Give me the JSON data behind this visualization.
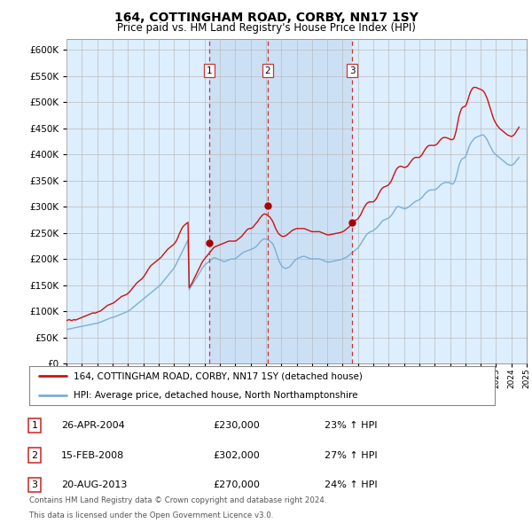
{
  "title": "164, COTTINGHAM ROAD, CORBY, NN17 1SY",
  "subtitle": "Price paid vs. HM Land Registry's House Price Index (HPI)",
  "ylim": [
    0,
    620000
  ],
  "yticks": [
    0,
    50000,
    100000,
    150000,
    200000,
    250000,
    300000,
    350000,
    400000,
    450000,
    500000,
    550000,
    600000
  ],
  "hpi_color": "#7bafd4",
  "price_color": "#cc1111",
  "marker_color": "#aa0000",
  "dashed_line_color": "#cc3333",
  "background_color": "#ffffff",
  "plot_bg_color": "#ddeeff",
  "shade_color": "#cce0f5",
  "legend_label_red": "164, COTTINGHAM ROAD, CORBY, NN17 1SY (detached house)",
  "legend_label_blue": "HPI: Average price, detached house, North Northamptonshire",
  "transactions": [
    {
      "num": 1,
      "date": "26-APR-2004",
      "price": 230000,
      "hpi_pct": "23% ↑ HPI",
      "x": 2004.32
    },
    {
      "num": 2,
      "date": "15-FEB-2008",
      "price": 302000,
      "hpi_pct": "27% ↑ HPI",
      "x": 2008.12
    },
    {
      "num": 3,
      "date": "20-AUG-2013",
      "price": 270000,
      "hpi_pct": "24% ↑ HPI",
      "x": 2013.63
    }
  ],
  "footer_line1": "Contains HM Land Registry data © Crown copyright and database right 2024.",
  "footer_line2": "This data is licensed under the Open Government Licence v3.0.",
  "hpi_data_x": [
    1995.0,
    1995.08,
    1995.17,
    1995.25,
    1995.33,
    1995.42,
    1995.5,
    1995.58,
    1995.67,
    1995.75,
    1995.83,
    1995.92,
    1996.0,
    1996.08,
    1996.17,
    1996.25,
    1996.33,
    1996.42,
    1996.5,
    1996.58,
    1996.67,
    1996.75,
    1996.83,
    1996.92,
    1997.0,
    1997.08,
    1997.17,
    1997.25,
    1997.33,
    1997.42,
    1997.5,
    1997.58,
    1997.67,
    1997.75,
    1997.83,
    1997.92,
    1998.0,
    1998.08,
    1998.17,
    1998.25,
    1998.33,
    1998.42,
    1998.5,
    1998.58,
    1998.67,
    1998.75,
    1998.83,
    1998.92,
    1999.0,
    1999.08,
    1999.17,
    1999.25,
    1999.33,
    1999.42,
    1999.5,
    1999.58,
    1999.67,
    1999.75,
    1999.83,
    1999.92,
    2000.0,
    2000.08,
    2000.17,
    2000.25,
    2000.33,
    2000.42,
    2000.5,
    2000.58,
    2000.67,
    2000.75,
    2000.83,
    2000.92,
    2001.0,
    2001.08,
    2001.17,
    2001.25,
    2001.33,
    2001.42,
    2001.5,
    2001.58,
    2001.67,
    2001.75,
    2001.83,
    2001.92,
    2002.0,
    2002.08,
    2002.17,
    2002.25,
    2002.33,
    2002.42,
    2002.5,
    2002.58,
    2002.67,
    2002.75,
    2002.83,
    2002.92,
    2003.0,
    2003.08,
    2003.17,
    2003.25,
    2003.33,
    2003.42,
    2003.5,
    2003.58,
    2003.67,
    2003.75,
    2003.83,
    2003.92,
    2004.0,
    2004.08,
    2004.17,
    2004.25,
    2004.33,
    2004.42,
    2004.5,
    2004.58,
    2004.67,
    2004.75,
    2004.83,
    2004.92,
    2005.0,
    2005.08,
    2005.17,
    2005.25,
    2005.33,
    2005.42,
    2005.5,
    2005.58,
    2005.67,
    2005.75,
    2005.83,
    2005.92,
    2006.0,
    2006.08,
    2006.17,
    2006.25,
    2006.33,
    2006.42,
    2006.5,
    2006.58,
    2006.67,
    2006.75,
    2006.83,
    2006.92,
    2007.0,
    2007.08,
    2007.17,
    2007.25,
    2007.33,
    2007.42,
    2007.5,
    2007.58,
    2007.67,
    2007.75,
    2007.83,
    2007.92,
    2008.0,
    2008.08,
    2008.17,
    2008.25,
    2008.33,
    2008.42,
    2008.5,
    2008.58,
    2008.67,
    2008.75,
    2008.83,
    2008.92,
    2009.0,
    2009.08,
    2009.17,
    2009.25,
    2009.33,
    2009.42,
    2009.5,
    2009.58,
    2009.67,
    2009.75,
    2009.83,
    2009.92,
    2010.0,
    2010.08,
    2010.17,
    2010.25,
    2010.33,
    2010.42,
    2010.5,
    2010.58,
    2010.67,
    2010.75,
    2010.83,
    2010.92,
    2011.0,
    2011.08,
    2011.17,
    2011.25,
    2011.33,
    2011.42,
    2011.5,
    2011.58,
    2011.67,
    2011.75,
    2011.83,
    2011.92,
    2012.0,
    2012.08,
    2012.17,
    2012.25,
    2012.33,
    2012.42,
    2012.5,
    2012.58,
    2012.67,
    2012.75,
    2012.83,
    2012.92,
    2013.0,
    2013.08,
    2013.17,
    2013.25,
    2013.33,
    2013.42,
    2013.5,
    2013.58,
    2013.67,
    2013.75,
    2013.83,
    2013.92,
    2014.0,
    2014.08,
    2014.17,
    2014.25,
    2014.33,
    2014.42,
    2014.5,
    2014.58,
    2014.67,
    2014.75,
    2014.83,
    2014.92,
    2015.0,
    2015.08,
    2015.17,
    2015.25,
    2015.33,
    2015.42,
    2015.5,
    2015.58,
    2015.67,
    2015.75,
    2015.83,
    2015.92,
    2016.0,
    2016.08,
    2016.17,
    2016.25,
    2016.33,
    2016.42,
    2016.5,
    2016.58,
    2016.67,
    2016.75,
    2016.83,
    2016.92,
    2017.0,
    2017.08,
    2017.17,
    2017.25,
    2017.33,
    2017.42,
    2017.5,
    2017.58,
    2017.67,
    2017.75,
    2017.83,
    2017.92,
    2018.0,
    2018.08,
    2018.17,
    2018.25,
    2018.33,
    2018.42,
    2018.5,
    2018.58,
    2018.67,
    2018.75,
    2018.83,
    2018.92,
    2019.0,
    2019.08,
    2019.17,
    2019.25,
    2019.33,
    2019.42,
    2019.5,
    2019.58,
    2019.67,
    2019.75,
    2019.83,
    2019.92,
    2020.0,
    2020.08,
    2020.17,
    2020.25,
    2020.33,
    2020.42,
    2020.5,
    2020.58,
    2020.67,
    2020.75,
    2020.83,
    2020.92,
    2021.0,
    2021.08,
    2021.17,
    2021.25,
    2021.33,
    2021.42,
    2021.5,
    2021.58,
    2021.67,
    2021.75,
    2021.83,
    2021.92,
    2022.0,
    2022.08,
    2022.17,
    2022.25,
    2022.33,
    2022.42,
    2022.5,
    2022.58,
    2022.67,
    2022.75,
    2022.83,
    2022.92,
    2023.0,
    2023.08,
    2023.17,
    2023.25,
    2023.33,
    2023.42,
    2023.5,
    2023.58,
    2023.67,
    2023.75,
    2023.83,
    2023.92,
    2024.0,
    2024.08,
    2024.17,
    2024.25,
    2024.33,
    2024.42,
    2024.5
  ],
  "hpi_data_y": [
    65000,
    65500,
    66000,
    66500,
    67000,
    67500,
    68000,
    68500,
    69000,
    69500,
    70000,
    70500,
    71000,
    71500,
    72000,
    72500,
    73000,
    73500,
    74000,
    74500,
    75000,
    75500,
    76000,
    76500,
    77000,
    77500,
    78500,
    79500,
    80500,
    81500,
    82500,
    83500,
    84500,
    85500,
    86500,
    87500,
    88000,
    88500,
    89500,
    90500,
    91500,
    92500,
    93500,
    94500,
    95500,
    96500,
    97500,
    98500,
    100000,
    101000,
    103000,
    105000,
    107000,
    109000,
    111000,
    113000,
    115000,
    117000,
    119000,
    121000,
    123000,
    125000,
    127000,
    129000,
    131000,
    133000,
    135000,
    137000,
    139000,
    141000,
    143000,
    145000,
    147000,
    149000,
    152000,
    155000,
    158000,
    161000,
    164000,
    167000,
    170000,
    173000,
    176000,
    179000,
    182000,
    186000,
    191000,
    196000,
    201000,
    206000,
    211000,
    216000,
    221000,
    226000,
    231000,
    236000,
    141000,
    145000,
    149000,
    153000,
    157000,
    161000,
    165000,
    169000,
    173000,
    177000,
    181000,
    185000,
    188000,
    190000,
    192000,
    194000,
    196000,
    198000,
    200000,
    202000,
    202000,
    201000,
    200000,
    199000,
    198000,
    197000,
    196000,
    195000,
    195000,
    196000,
    197000,
    198000,
    199000,
    200000,
    200000,
    200000,
    200000,
    202000,
    204000,
    206000,
    208000,
    210000,
    212000,
    213000,
    214000,
    215000,
    216000,
    217000,
    218000,
    219000,
    220000,
    221000,
    223000,
    225000,
    228000,
    231000,
    234000,
    236000,
    238000,
    238000,
    238000,
    237000,
    236000,
    234000,
    232000,
    230000,
    225000,
    220000,
    212000,
    205000,
    198000,
    192000,
    188000,
    185000,
    183000,
    182000,
    182000,
    183000,
    184000,
    186000,
    189000,
    192000,
    195000,
    198000,
    200000,
    201000,
    202000,
    203000,
    204000,
    205000,
    205000,
    204000,
    203000,
    202000,
    201000,
    200000,
    200000,
    200000,
    200000,
    200000,
    200000,
    200000,
    200000,
    199000,
    198000,
    197000,
    196000,
    195000,
    194000,
    194000,
    194000,
    195000,
    195000,
    196000,
    196000,
    197000,
    197000,
    198000,
    198000,
    199000,
    200000,
    201000,
    202000,
    203000,
    205000,
    207000,
    209000,
    211000,
    213000,
    215000,
    217000,
    219000,
    221000,
    224000,
    228000,
    232000,
    236000,
    240000,
    244000,
    247000,
    249000,
    251000,
    252000,
    253000,
    254000,
    256000,
    258000,
    260000,
    263000,
    266000,
    269000,
    272000,
    274000,
    275000,
    276000,
    277000,
    278000,
    280000,
    283000,
    286000,
    290000,
    294000,
    298000,
    300000,
    300000,
    299000,
    298000,
    297000,
    296000,
    296000,
    297000,
    298000,
    300000,
    302000,
    304000,
    306000,
    308000,
    310000,
    311000,
    312000,
    313000,
    315000,
    317000,
    320000,
    323000,
    326000,
    328000,
    330000,
    331000,
    332000,
    332000,
    332000,
    332000,
    333000,
    335000,
    337000,
    340000,
    342000,
    344000,
    345000,
    346000,
    346000,
    346000,
    346000,
    345000,
    344000,
    343000,
    345000,
    350000,
    358000,
    368000,
    378000,
    385000,
    390000,
    392000,
    393000,
    395000,
    400000,
    408000,
    415000,
    420000,
    424000,
    427000,
    430000,
    432000,
    433000,
    434000,
    435000,
    436000,
    437000,
    437000,
    435000,
    432000,
    428000,
    423000,
    418000,
    413000,
    408000,
    404000,
    401000,
    399000,
    397000,
    395000,
    393000,
    391000,
    389000,
    387000,
    385000,
    383000,
    381000,
    380000,
    379000,
    379000,
    380000,
    382000,
    385000,
    388000,
    391000,
    394000
  ],
  "price_data_x": [
    1995.0,
    1995.08,
    1995.17,
    1995.25,
    1995.33,
    1995.42,
    1995.5,
    1995.58,
    1995.67,
    1995.75,
    1995.83,
    1995.92,
    1996.0,
    1996.08,
    1996.17,
    1996.25,
    1996.33,
    1996.42,
    1996.5,
    1996.58,
    1996.67,
    1996.75,
    1996.83,
    1996.92,
    1997.0,
    1997.08,
    1997.17,
    1997.25,
    1997.33,
    1997.42,
    1997.5,
    1997.58,
    1997.67,
    1997.75,
    1997.83,
    1997.92,
    1998.0,
    1998.08,
    1998.17,
    1998.25,
    1998.33,
    1998.42,
    1998.5,
    1998.58,
    1998.67,
    1998.75,
    1998.83,
    1998.92,
    1999.0,
    1999.08,
    1999.17,
    1999.25,
    1999.33,
    1999.42,
    1999.5,
    1999.58,
    1999.67,
    1999.75,
    1999.83,
    1999.92,
    2000.0,
    2000.08,
    2000.17,
    2000.25,
    2000.33,
    2000.42,
    2000.5,
    2000.58,
    2000.67,
    2000.75,
    2000.83,
    2000.92,
    2001.0,
    2001.08,
    2001.17,
    2001.25,
    2001.33,
    2001.42,
    2001.5,
    2001.58,
    2001.67,
    2001.75,
    2001.83,
    2001.92,
    2002.0,
    2002.08,
    2002.17,
    2002.25,
    2002.33,
    2002.42,
    2002.5,
    2002.58,
    2002.67,
    2002.75,
    2002.83,
    2002.92,
    2003.0,
    2003.08,
    2003.17,
    2003.25,
    2003.33,
    2003.42,
    2003.5,
    2003.58,
    2003.67,
    2003.75,
    2003.83,
    2003.92,
    2004.0,
    2004.08,
    2004.17,
    2004.25,
    2004.33,
    2004.42,
    2004.5,
    2004.58,
    2004.67,
    2004.75,
    2004.83,
    2004.92,
    2005.0,
    2005.08,
    2005.17,
    2005.25,
    2005.33,
    2005.42,
    2005.5,
    2005.58,
    2005.67,
    2005.75,
    2005.83,
    2005.92,
    2006.0,
    2006.08,
    2006.17,
    2006.25,
    2006.33,
    2006.42,
    2006.5,
    2006.58,
    2006.67,
    2006.75,
    2006.83,
    2006.92,
    2007.0,
    2007.08,
    2007.17,
    2007.25,
    2007.33,
    2007.42,
    2007.5,
    2007.58,
    2007.67,
    2007.75,
    2007.83,
    2007.92,
    2008.0,
    2008.08,
    2008.17,
    2008.25,
    2008.33,
    2008.42,
    2008.5,
    2008.58,
    2008.67,
    2008.75,
    2008.83,
    2008.92,
    2009.0,
    2009.08,
    2009.17,
    2009.25,
    2009.33,
    2009.42,
    2009.5,
    2009.58,
    2009.67,
    2009.75,
    2009.83,
    2009.92,
    2010.0,
    2010.08,
    2010.17,
    2010.25,
    2010.33,
    2010.42,
    2010.5,
    2010.58,
    2010.67,
    2010.75,
    2010.83,
    2010.92,
    2011.0,
    2011.08,
    2011.17,
    2011.25,
    2011.33,
    2011.42,
    2011.5,
    2011.58,
    2011.67,
    2011.75,
    2011.83,
    2011.92,
    2012.0,
    2012.08,
    2012.17,
    2012.25,
    2012.33,
    2012.42,
    2012.5,
    2012.58,
    2012.67,
    2012.75,
    2012.83,
    2012.92,
    2013.0,
    2013.08,
    2013.17,
    2013.25,
    2013.33,
    2013.42,
    2013.5,
    2013.58,
    2013.67,
    2013.75,
    2013.83,
    2013.92,
    2014.0,
    2014.08,
    2014.17,
    2014.25,
    2014.33,
    2014.42,
    2014.5,
    2014.58,
    2014.67,
    2014.75,
    2014.83,
    2014.92,
    2015.0,
    2015.08,
    2015.17,
    2015.25,
    2015.33,
    2015.42,
    2015.5,
    2015.58,
    2015.67,
    2015.75,
    2015.83,
    2015.92,
    2016.0,
    2016.08,
    2016.17,
    2016.25,
    2016.33,
    2016.42,
    2016.5,
    2016.58,
    2016.67,
    2016.75,
    2016.83,
    2016.92,
    2017.0,
    2017.08,
    2017.17,
    2017.25,
    2017.33,
    2017.42,
    2017.5,
    2017.58,
    2017.67,
    2017.75,
    2017.83,
    2017.92,
    2018.0,
    2018.08,
    2018.17,
    2018.25,
    2018.33,
    2018.42,
    2018.5,
    2018.58,
    2018.67,
    2018.75,
    2018.83,
    2018.92,
    2019.0,
    2019.08,
    2019.17,
    2019.25,
    2019.33,
    2019.42,
    2019.5,
    2019.58,
    2019.67,
    2019.75,
    2019.83,
    2019.92,
    2020.0,
    2020.08,
    2020.17,
    2020.25,
    2020.33,
    2020.42,
    2020.5,
    2020.58,
    2020.67,
    2020.75,
    2020.83,
    2020.92,
    2021.0,
    2021.08,
    2021.17,
    2021.25,
    2021.33,
    2021.42,
    2021.5,
    2021.58,
    2021.67,
    2021.75,
    2021.83,
    2021.92,
    2022.0,
    2022.08,
    2022.17,
    2022.25,
    2022.33,
    2022.42,
    2022.5,
    2022.58,
    2022.67,
    2022.75,
    2022.83,
    2022.92,
    2023.0,
    2023.08,
    2023.17,
    2023.25,
    2023.33,
    2023.42,
    2023.5,
    2023.58,
    2023.67,
    2023.75,
    2023.83,
    2023.92,
    2024.0,
    2024.08,
    2024.17,
    2024.25,
    2024.33,
    2024.42,
    2024.5
  ],
  "price_data_y": [
    82000,
    83000,
    84000,
    83000,
    82000,
    83000,
    84000,
    83000,
    84000,
    85000,
    86000,
    87000,
    88000,
    89000,
    90000,
    91000,
    92000,
    93000,
    94000,
    95000,
    96000,
    97000,
    96000,
    97000,
    98000,
    99000,
    100000,
    101000,
    103000,
    105000,
    107000,
    109000,
    111000,
    112000,
    113000,
    114000,
    115000,
    116000,
    118000,
    120000,
    122000,
    124000,
    126000,
    128000,
    129000,
    130000,
    131000,
    132000,
    134000,
    136000,
    139000,
    142000,
    145000,
    148000,
    151000,
    154000,
    156000,
    158000,
    160000,
    162000,
    165000,
    168000,
    172000,
    176000,
    180000,
    184000,
    187000,
    189000,
    191000,
    193000,
    195000,
    197000,
    199000,
    201000,
    203000,
    206000,
    209000,
    212000,
    215000,
    218000,
    220000,
    222000,
    224000,
    226000,
    228000,
    231000,
    235000,
    240000,
    246000,
    252000,
    257000,
    261000,
    264000,
    266000,
    268000,
    270000,
    145000,
    149000,
    153000,
    158000,
    163000,
    168000,
    173000,
    178000,
    183000,
    188000,
    193000,
    197000,
    200000,
    203000,
    206000,
    209000,
    212000,
    215000,
    218000,
    221000,
    223000,
    224000,
    225000,
    226000,
    227000,
    228000,
    229000,
    230000,
    231000,
    232000,
    233000,
    234000,
    234000,
    234000,
    234000,
    234000,
    234000,
    235000,
    237000,
    239000,
    241000,
    243000,
    246000,
    249000,
    252000,
    255000,
    257000,
    258000,
    258000,
    259000,
    261000,
    264000,
    267000,
    270000,
    273000,
    277000,
    280000,
    283000,
    285000,
    286000,
    285000,
    284000,
    282000,
    280000,
    277000,
    273000,
    268000,
    262000,
    256000,
    252000,
    248000,
    246000,
    244000,
    243000,
    243000,
    244000,
    245000,
    247000,
    249000,
    251000,
    253000,
    255000,
    256000,
    257000,
    258000,
    258000,
    258000,
    258000,
    258000,
    258000,
    258000,
    257000,
    256000,
    255000,
    254000,
    253000,
    252000,
    252000,
    252000,
    252000,
    252000,
    252000,
    252000,
    251000,
    250000,
    249000,
    248000,
    247000,
    246000,
    246000,
    246000,
    247000,
    247000,
    248000,
    248000,
    249000,
    249000,
    250000,
    250000,
    251000,
    252000,
    253000,
    255000,
    257000,
    259000,
    261000,
    264000,
    267000,
    270000,
    272000,
    274000,
    275000,
    277000,
    280000,
    284000,
    289000,
    294000,
    299000,
    303000,
    306000,
    308000,
    309000,
    309000,
    309000,
    309000,
    311000,
    314000,
    318000,
    323000,
    328000,
    332000,
    335000,
    337000,
    338000,
    339000,
    340000,
    342000,
    345000,
    349000,
    354000,
    360000,
    366000,
    371000,
    374000,
    376000,
    377000,
    377000,
    376000,
    375000,
    375000,
    376000,
    378000,
    381000,
    385000,
    388000,
    391000,
    393000,
    394000,
    394000,
    394000,
    394000,
    396000,
    399000,
    403000,
    407000,
    411000,
    414000,
    416000,
    417000,
    417000,
    417000,
    417000,
    417000,
    418000,
    420000,
    423000,
    426000,
    429000,
    431000,
    432000,
    432000,
    432000,
    431000,
    430000,
    429000,
    428000,
    428000,
    430000,
    437000,
    447000,
    460000,
    472000,
    481000,
    487000,
    490000,
    491000,
    492000,
    496000,
    504000,
    512000,
    519000,
    524000,
    527000,
    528000,
    528000,
    527000,
    526000,
    525000,
    524000,
    523000,
    521000,
    518000,
    513000,
    507000,
    500000,
    492000,
    484000,
    476000,
    469000,
    463000,
    459000,
    455000,
    452000,
    449000,
    447000,
    445000,
    443000,
    441000,
    439000,
    437000,
    436000,
    435000,
    434000,
    435000,
    437000,
    440000,
    444000,
    448000,
    452000
  ]
}
